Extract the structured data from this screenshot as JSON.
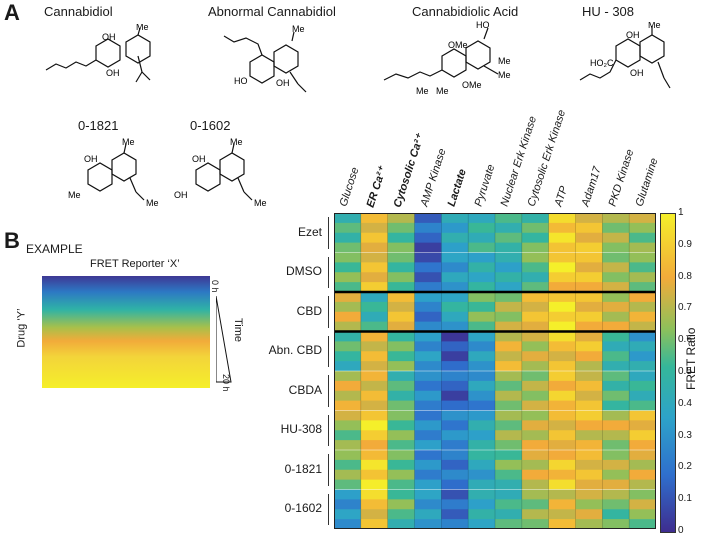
{
  "panel_a": {
    "letter": "A",
    "compounds": [
      {
        "name": "Cannabidiol",
        "structure": "cannabidiol-structure"
      },
      {
        "name": "Abnormal Cannabidiol",
        "structure": "abnormal-cannabidiol-structure"
      },
      {
        "name": "Cannabidiolic Acid",
        "structure": "cannabidiolic-acid-structure"
      },
      {
        "name": "HU - 308",
        "structure": "hu-308-structure"
      },
      {
        "name": "0-1821",
        "structure": "o-1821-structure"
      },
      {
        "name": "0-1602",
        "structure": "o-1602-structure"
      }
    ],
    "atom_labels": {
      "oh": "OH",
      "me": "Me",
      "ho": "HO",
      "ome": "OMe",
      "ho2c": "HO₂C"
    }
  },
  "panel_b": {
    "letter": "B",
    "example": {
      "title": "EXAMPLE",
      "reporter": "FRET Reporter ‘X’",
      "drug": "Drug ‘Y’",
      "time_label": "Time",
      "time_start": "0 h",
      "time_end": "20 h"
    },
    "colorbar": {
      "label": "FRET Ratio",
      "ticks": [
        "1",
        "0.9",
        "0.8",
        "0.7",
        "0.6",
        "0.5",
        "0.4",
        "0.3",
        "0.2",
        "0.1",
        "0"
      ],
      "colors": {
        "low": "#3e2d8f",
        "mid": "#2fb3a6",
        "orange": "#f2ab3a",
        "high": "#f5ef2a"
      }
    }
  },
  "chart_data": {
    "type": "heatmap",
    "xlabel": "",
    "ylabel": "",
    "columns": [
      {
        "label": "Glucose",
        "bold": false
      },
      {
        "label": "ER Ca²⁺",
        "bold": true
      },
      {
        "label": "Cytosolic Ca²⁺",
        "bold": true
      },
      {
        "label": "AMP Kinase",
        "bold": false
      },
      {
        "label": "Lactate",
        "bold": true
      },
      {
        "label": "Pyruvate",
        "bold": false
      },
      {
        "label": "Nuclear Erk Kinase",
        "bold": false
      },
      {
        "label": "Cytosolic Erk Kinase",
        "bold": false
      },
      {
        "label": "ATP",
        "bold": false
      },
      {
        "label": "Adam17",
        "bold": false
      },
      {
        "label": "PKD Kinase",
        "bold": false
      },
      {
        "label": "Glutamine",
        "bold": false
      }
    ],
    "rows": [
      {
        "label": "Ezet",
        "values": [
          0.55,
          0.85,
          0.6,
          0.15,
          0.35,
          0.45,
          0.5,
          0.55,
          0.92,
          0.85,
          0.7,
          0.65
        ]
      },
      {
        "label": "DMSO",
        "values": [
          0.55,
          0.8,
          0.55,
          0.15,
          0.35,
          0.45,
          0.45,
          0.55,
          0.9,
          0.8,
          0.65,
          0.6
        ]
      },
      {
        "label": "CBD",
        "values": [
          0.75,
          0.5,
          0.85,
          0.25,
          0.4,
          0.55,
          0.65,
          0.8,
          0.95,
          0.85,
          0.75,
          0.8
        ]
      },
      {
        "label": "Abn. CBD",
        "values": [
          0.5,
          0.75,
          0.55,
          0.3,
          0.1,
          0.35,
          0.8,
          0.75,
          0.85,
          0.8,
          0.45,
          0.35
        ]
      },
      {
        "label": "CBDA",
        "values": [
          0.75,
          0.8,
          0.55,
          0.3,
          0.15,
          0.3,
          0.6,
          0.65,
          0.85,
          0.8,
          0.55,
          0.5
        ]
      },
      {
        "label": "HU-308",
        "values": [
          0.65,
          0.9,
          0.55,
          0.25,
          0.25,
          0.4,
          0.65,
          0.75,
          0.85,
          0.8,
          0.7,
          0.8
        ]
      },
      {
        "label": "0-1821",
        "values": [
          0.6,
          0.92,
          0.6,
          0.3,
          0.25,
          0.4,
          0.55,
          0.7,
          0.85,
          0.8,
          0.7,
          0.75
        ]
      },
      {
        "label": "0-1602",
        "values": [
          0.35,
          0.85,
          0.55,
          0.3,
          0.15,
          0.4,
          0.5,
          0.65,
          0.8,
          0.75,
          0.6,
          0.65
        ]
      }
    ],
    "colorbar_range": [
      0,
      1
    ],
    "colorbar_label": "FRET Ratio",
    "separators_after_rows": [
      "DMSO",
      "CBD"
    ]
  }
}
